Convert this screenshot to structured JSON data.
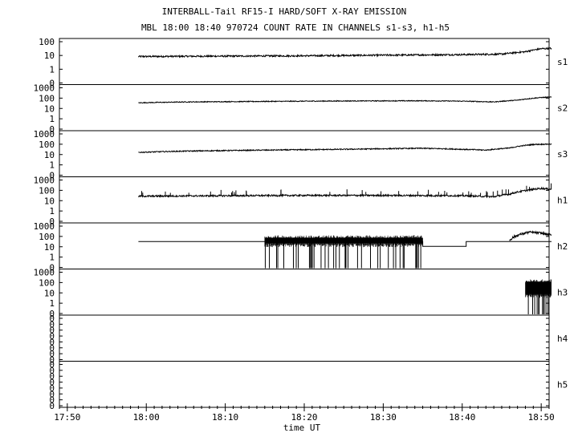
{
  "chart_data": {
    "type": "line",
    "title": "INTERBALL-Tail RF15-I HARD/SOFT X-RAY EMISSION",
    "subtitle": "MBL 18:00 18:40 970724  COUNT RATE IN CHANNELS s1-s3, h1-h5",
    "xlabel": "time UT",
    "x_ticks": [
      "17:50",
      "18:00",
      "18:10",
      "18:20",
      "18:30",
      "18:40",
      "18:50"
    ],
    "x_range": [
      "17:49",
      "18:51"
    ],
    "y_scale": "log",
    "grid": false,
    "legend": "none",
    "panels": [
      {
        "name": "s1",
        "yticks": [
          "100",
          "10",
          "1",
          "0"
        ],
        "ylim": [
          0.1,
          100
        ],
        "series": [
          {
            "kind": "line",
            "x": [
              -1.0,
              10.0,
              20.0,
              30.0,
              40.0,
              45.0,
              48.0,
              50.0,
              51.3
            ],
            "y": [
              8,
              8.5,
              9,
              10,
              11,
              12,
              18,
              30,
              32
            ],
            "noise": 0.06,
            "spikes": 0
          }
        ]
      },
      {
        "name": "s2",
        "yticks": [
          "1000",
          "100",
          "10",
          "1",
          "0"
        ],
        "ylim": [
          0.1,
          1000
        ],
        "series": [
          {
            "kind": "line",
            "x": [
              -1.0,
              5.0,
              15.0,
              25.0,
              35.0,
              40.0,
              44.0,
              47.0,
              50.0,
              51.3
            ],
            "y": [
              33,
              40,
              45,
              50,
              52,
              48,
              40,
              60,
              110,
              120
            ],
            "noise": 0.04,
            "spikes": 0
          }
        ]
      },
      {
        "name": "s3",
        "yticks": [
          "1000",
          "100",
          "10",
          "1",
          "0"
        ],
        "ylim": [
          0.1,
          1000
        ],
        "series": [
          {
            "kind": "line",
            "x": [
              -1.0,
              5.0,
              15.0,
              25.0,
              35.0,
              40.0,
              43.0,
              46.0,
              49.0,
              51.3
            ],
            "y": [
              15,
              20,
              25,
              30,
              38,
              30,
              25,
              40,
              90,
              100
            ],
            "noise": 0.05,
            "spikes": 0
          }
        ]
      },
      {
        "name": "h1",
        "yticks": [
          "1000",
          "100",
          "10",
          "1",
          "0"
        ],
        "ylim": [
          0.1,
          1000
        ],
        "series": [
          {
            "kind": "line",
            "x": [
              -1.0,
              10.0,
              20.0,
              30.0,
              40.0,
              44.0,
              46.0,
              48.0,
              50.0,
              51.3
            ],
            "y": [
              25,
              28,
              30,
              30,
              28,
              22,
              40,
              90,
              150,
              120
            ],
            "noise": 0.08,
            "spikes": 40
          }
        ]
      },
      {
        "name": "h2",
        "yticks": [
          "1000",
          "100",
          "10",
          "1",
          "0"
        ],
        "ylim": [
          0.1,
          1000
        ],
        "series": [
          {
            "kind": "step",
            "x": [
              -1.0,
              15.0,
              35.0,
              39.5,
              40.5,
              45.5,
              51.3
            ],
            "y": [
              30,
              30,
              10,
              10,
              30,
              30,
              30
            ]
          },
          {
            "kind": "noisy-band",
            "x": [
              15.0,
              35.0
            ],
            "y": [
              30,
              50
            ],
            "dropouts": 40
          },
          {
            "kind": "line",
            "x": [
              46.0,
              47.0,
              48.5,
              50.0,
              51.3
            ],
            "y": [
              40,
              120,
              250,
              200,
              120
            ],
            "noise": 0.12,
            "spikes": 0
          }
        ]
      },
      {
        "name": "h3",
        "yticks": [
          "1000",
          "100",
          "10",
          "1",
          "0"
        ],
        "ylim": [
          0.1,
          1000
        ],
        "series": [
          {
            "kind": "noisy-band",
            "x": [
              48.0,
              51.3
            ],
            "y": [
              10,
              80
            ],
            "dropouts": 12
          }
        ]
      },
      {
        "name": "h4",
        "yticks": [
          "0",
          "0",
          "0",
          "0",
          "0",
          "0",
          "0",
          "0"
        ],
        "ylim": [
          0,
          1
        ],
        "series": []
      },
      {
        "name": "h5",
        "yticks": [
          "0",
          "0",
          "0",
          "0",
          "0",
          "0",
          "0",
          "0"
        ],
        "ylim": [
          0,
          1
        ],
        "series": []
      }
    ]
  }
}
